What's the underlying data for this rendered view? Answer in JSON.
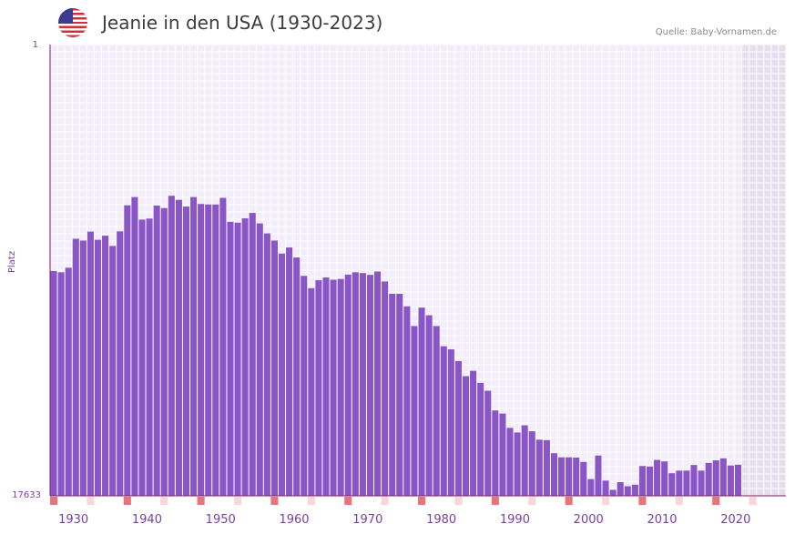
{
  "header": {
    "title": "Jeanie in den USA (1930-2023)",
    "source": "Quelle: Baby-Vornamen.de",
    "flag_icon": "us-flag-icon"
  },
  "chart_data": {
    "type": "bar",
    "title": "Jeanie in den USA (1930-2023)",
    "ylabel": "Platz",
    "ylim": [
      1,
      17633
    ],
    "y_inverted": true,
    "y_ticks": [
      "1",
      "17633"
    ],
    "x_ticks": [
      "1930",
      "1940",
      "1950",
      "1960",
      "1970",
      "1980",
      "1990",
      "2000",
      "2010",
      "2020"
    ],
    "x_range": [
      1929,
      2029
    ],
    "data_end_year": 2022,
    "bar_color": "#8a55c6",
    "marker_color": "#e8737e",
    "years": [
      1929,
      1930,
      1931,
      1932,
      1933,
      1934,
      1935,
      1936,
      1937,
      1938,
      1939,
      1940,
      1941,
      1942,
      1943,
      1944,
      1945,
      1946,
      1947,
      1948,
      1949,
      1950,
      1951,
      1952,
      1953,
      1954,
      1955,
      1956,
      1957,
      1958,
      1959,
      1960,
      1961,
      1962,
      1963,
      1964,
      1965,
      1966,
      1967,
      1968,
      1969,
      1970,
      1971,
      1972,
      1973,
      1974,
      1975,
      1976,
      1977,
      1978,
      1979,
      1980,
      1981,
      1982,
      1983,
      1984,
      1985,
      1986,
      1987,
      1988,
      1989,
      1990,
      1991,
      1992,
      1993,
      1994,
      1995,
      1996,
      1997,
      1998,
      1999,
      2000,
      2001,
      2002,
      2003,
      2004,
      2005,
      2006,
      2007,
      2008,
      2009,
      2010,
      2011,
      2012,
      2013,
      2014,
      2015,
      2016,
      2017,
      2018,
      2019,
      2020,
      2021,
      2022
    ],
    "values": [
      8850,
      8900,
      8720,
      7590,
      7660,
      7310,
      7630,
      7470,
      7870,
      7300,
      6280,
      5960,
      6840,
      6800,
      6290,
      6390,
      5910,
      6070,
      6330,
      5960,
      6230,
      6250,
      6250,
      5990,
      6930,
      6960,
      6790,
      6580,
      6990,
      7380,
      7660,
      8170,
      7930,
      8320,
      9040,
      9520,
      9210,
      9100,
      9190,
      9160,
      8990,
      8900,
      8930,
      9000,
      8870,
      9260,
      9740,
      9740,
      10230,
      11000,
      10280,
      10580,
      11000,
      11790,
      11910,
      12370,
      12960,
      12750,
      13220,
      13530,
      14300,
      14420,
      14980,
      15160,
      14880,
      15110,
      15440,
      15460,
      15970,
      16130,
      16130,
      16140,
      16310,
      16980,
      16060,
      17040,
      17400,
      17100,
      17260,
      17200,
      16470,
      16490,
      16230,
      16290,
      16750,
      16650,
      16650,
      16430,
      16650,
      16350,
      16250,
      16170,
      16450,
      16420
    ]
  }
}
